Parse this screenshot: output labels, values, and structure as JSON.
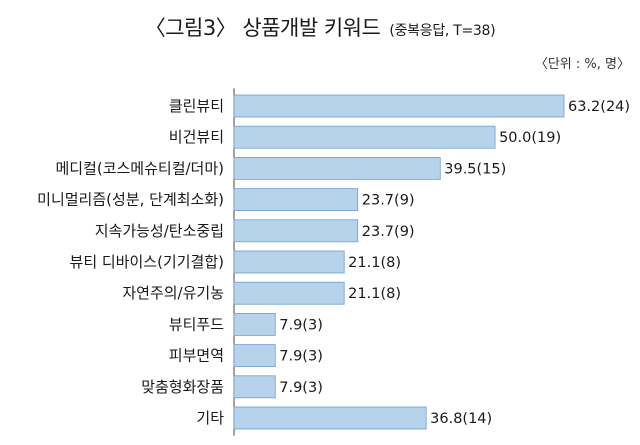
{
  "header": {
    "title": "〈그림3〉 상품개발 키워드",
    "subtitle": "(중복응답, T=38)",
    "unit": "〈단위 : %, 명〉"
  },
  "chart_data": {
    "type": "bar",
    "orientation": "horizontal",
    "title": "〈그림3〉 상품개발 키워드",
    "subtitle": "(중복응답, T=38)",
    "categories": [
      "클린뷰티",
      "비건뷰티",
      "메디컬(코스메슈티컬/더마)",
      "미니멀리즘(성분, 단계최소화)",
      "지속가능성/탄소중립",
      "뷰티 디바이스(기기결합)",
      "자연주의/유기농",
      "뷰티푸드",
      "피부면역",
      "맞춤형화장품",
      "기타"
    ],
    "values": [
      63.2,
      50.0,
      39.5,
      23.7,
      23.7,
      21.1,
      21.1,
      7.9,
      7.9,
      7.9,
      36.8
    ],
    "counts": [
      24,
      19,
      15,
      9,
      9,
      8,
      8,
      3,
      3,
      3,
      14
    ],
    "value_labels": [
      "63.2(24)",
      "50.0(19)",
      "39.5(15)",
      "23.7(9)",
      "23.7(9)",
      "21.1(8)",
      "21.1(8)",
      "7.9(3)",
      "7.9(3)",
      "7.9(3)",
      "36.8(14)"
    ],
    "xlim": [
      0,
      63.2
    ],
    "grid": false,
    "legend": "none",
    "bar_color": "#b7d3ec",
    "bar_edge_color": "#6f9fcd"
  }
}
